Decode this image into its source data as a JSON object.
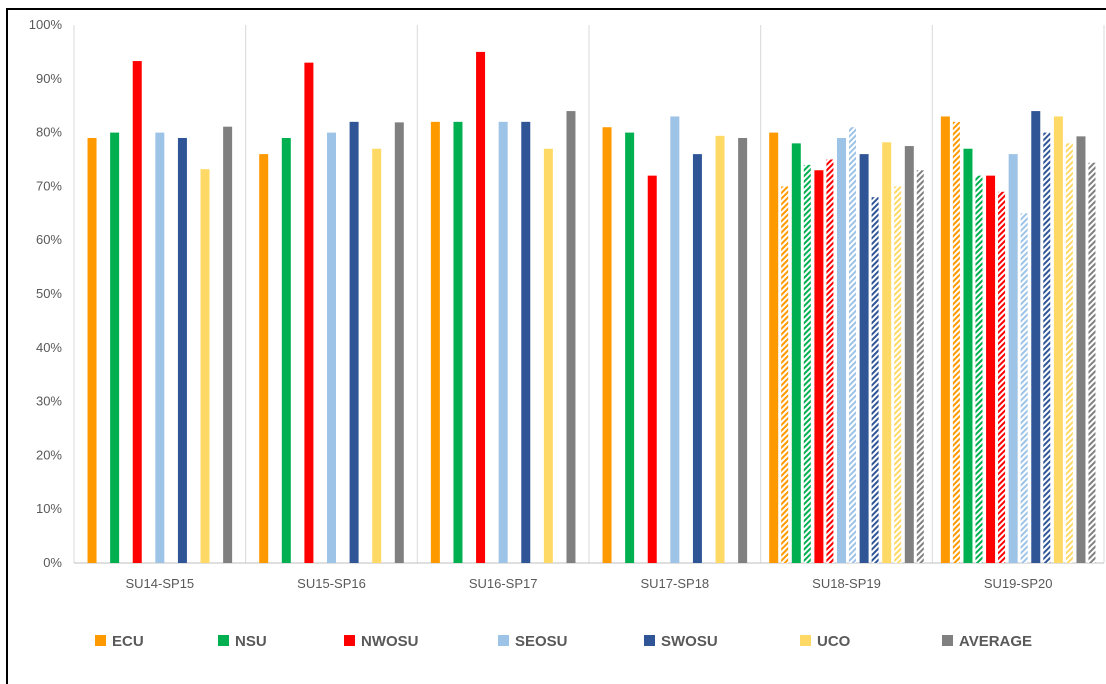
{
  "chart_data": {
    "type": "bar",
    "categories": [
      "SU14-SP15",
      "SU15-SP16",
      "SU16-SP17",
      "SU17-SP18",
      "SU18-SP19",
      "SU19-SP20"
    ],
    "ylim": [
      0,
      100
    ],
    "y_tick_labels": [
      "0%",
      "10%",
      "20%",
      "30%",
      "40%",
      "50%",
      "60%",
      "70%",
      "80%",
      "90%",
      "100%"
    ],
    "grid": "vertical separators between categories",
    "legend_position": "bottom",
    "series": [
      {
        "name": "ECU",
        "color": "#FF9900",
        "values": [
          79,
          76,
          82,
          81,
          80,
          83
        ],
        "hatched_values": [
          null,
          null,
          null,
          null,
          70,
          82
        ]
      },
      {
        "name": "NSU",
        "color": "#00B050",
        "values": [
          80,
          79,
          82,
          80,
          78,
          77
        ],
        "hatched_values": [
          null,
          null,
          null,
          null,
          74,
          72
        ]
      },
      {
        "name": "NWOSU",
        "color": "#FF0000",
        "values": [
          93.3,
          93,
          95,
          72,
          73,
          72
        ],
        "hatched_values": [
          null,
          null,
          null,
          null,
          75,
          69
        ]
      },
      {
        "name": "SEOSU",
        "color": "#9DC3E6",
        "values": [
          80,
          80,
          82,
          83,
          79,
          76
        ],
        "hatched_values": [
          null,
          null,
          null,
          null,
          81,
          65
        ]
      },
      {
        "name": "SWOSU",
        "color": "#2F5597",
        "values": [
          79,
          82,
          82,
          76,
          76,
          84
        ],
        "hatched_values": [
          null,
          null,
          null,
          null,
          68,
          80
        ]
      },
      {
        "name": "UCO",
        "color": "#FFD966",
        "values": [
          73.2,
          77,
          77,
          79.4,
          78.2,
          83
        ],
        "hatched_values": [
          null,
          null,
          null,
          null,
          70,
          78
        ]
      },
      {
        "name": "AVERAGE",
        "color": "#808080",
        "values": [
          81.1,
          81.9,
          84,
          79,
          77.5,
          79.3
        ],
        "hatched_values": [
          null,
          null,
          null,
          null,
          73,
          74.4
        ]
      }
    ]
  }
}
